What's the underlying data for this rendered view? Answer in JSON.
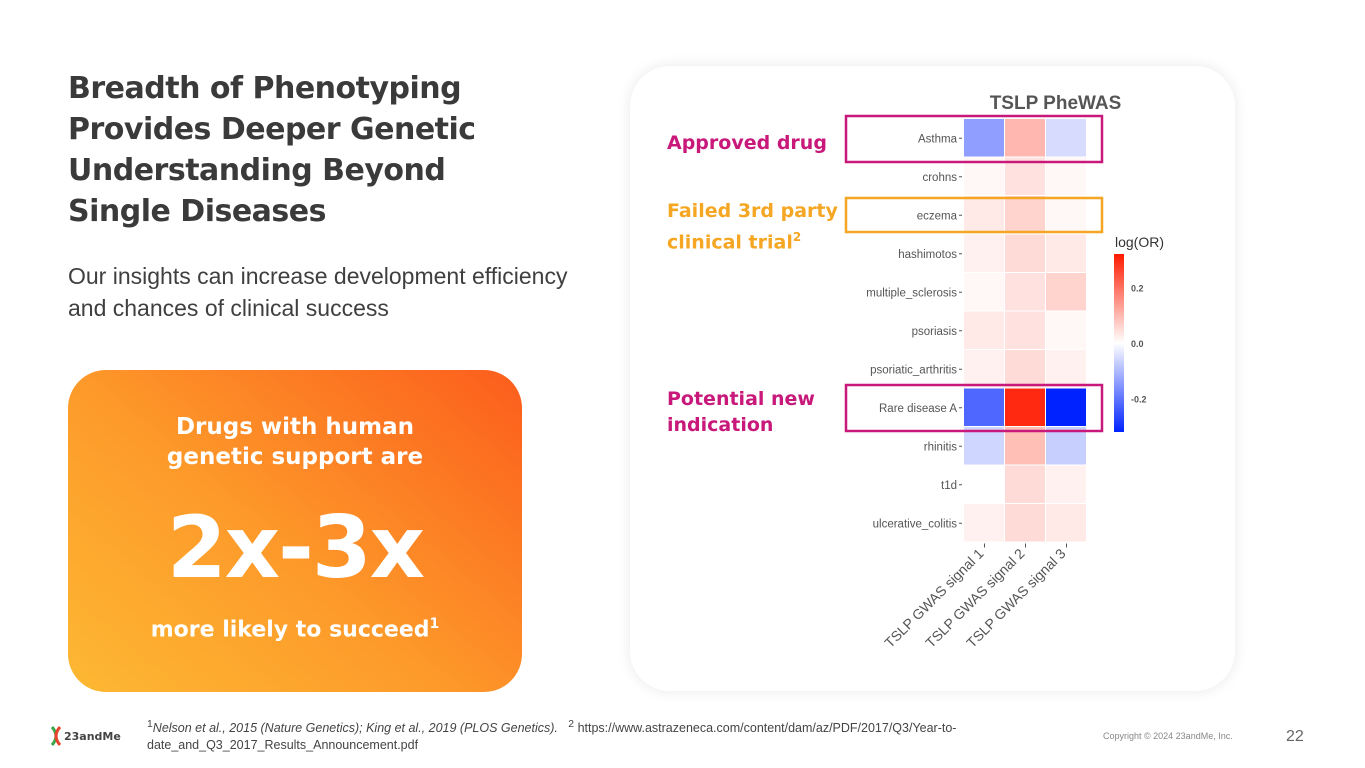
{
  "slide": {
    "title": "Breadth of Phenotyping Provides Deeper Genetic Understanding Beyond Single Diseases",
    "subtitle": "Our insights can increase development efficiency and chances of clinical success",
    "stat_card": {
      "line1": "Drugs with human",
      "line2": "genetic support are",
      "big": "2x-3x",
      "footer": "more likely to succeed",
      "footer_sup": "1"
    },
    "callouts": {
      "approved": "Approved drug",
      "failed": "Failed 3rd party clinical trial",
      "failed_sup": "2",
      "potential": "Potential new indication"
    },
    "footnotes": {
      "ref1_sup": "1",
      "ref1": "Nelson et al., 2015 (Nature Genetics); King et al., 2019 (PLOS Genetics).",
      "ref2_sup": "2",
      "ref2": "https://www.astrazeneca.com/content/dam/az/PDF/2017/Q3/Year-to-date_and_Q3_2017_Results_Announcement.pdf"
    },
    "logo_text": "23andMe",
    "copyright": "Copyright © 2024 23andMe, Inc.",
    "page_number": "22"
  },
  "colors": {
    "magenta": "#c8197b",
    "orange": "#f5a623",
    "positive": "#ff1a00",
    "negative": "#0022ff"
  },
  "chart_data": {
    "type": "heatmap",
    "title": "TSLP PheWAS",
    "rows": [
      "Asthma",
      "crohns",
      "eczema",
      "hashimotos",
      "multiple_sclerosis",
      "psoriasis",
      "psoriatic_arthritis",
      "Rare disease A",
      "rhinitis",
      "t1d",
      "ulcerative_colitis"
    ],
    "columns": [
      "TSLP GWAS signal 1",
      "TSLP GWAS signal 2",
      "TSLP GWAS signal 3"
    ],
    "values": [
      [
        -0.14,
        0.1,
        -0.05
      ],
      [
        0.01,
        0.04,
        0.01
      ],
      [
        0.03,
        0.06,
        0.01
      ],
      [
        0.02,
        0.05,
        0.03
      ],
      [
        0.01,
        0.04,
        0.06
      ],
      [
        0.03,
        0.04,
        0.01
      ],
      [
        0.02,
        0.05,
        0.02
      ],
      [
        -0.22,
        0.3,
        -0.32
      ],
      [
        -0.06,
        0.09,
        -0.07
      ],
      [
        0.0,
        0.05,
        0.02
      ],
      [
        0.02,
        0.05,
        0.03
      ]
    ],
    "legend": {
      "title": "log(OR)",
      "ticks": [
        "0.2",
        "0.0",
        "-0.2"
      ],
      "tick_values": [
        0.2,
        0.0,
        -0.2
      ],
      "range": [
        -0.32,
        0.32
      ]
    }
  }
}
